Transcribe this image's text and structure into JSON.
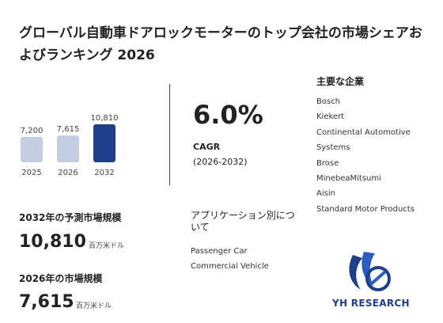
{
  "title": "グローバル自動車ドアロックモーターのトップ会社の市場シェアおよびランキング 2026",
  "chart_data": {
    "type": "bar",
    "categories": [
      "2025",
      "2026",
      "2032"
    ],
    "values": [
      7200,
      7615,
      10810
    ],
    "value_labels": [
      "7,200",
      "7,615",
      "10,810"
    ],
    "colors": [
      "#c3cee2",
      "#c3cee2",
      "#1f3f8a"
    ]
  },
  "cagr": {
    "value": "6.0%",
    "label": "CAGR",
    "range": "(2026-2032)"
  },
  "companies": {
    "title": "主要な企業",
    "items": [
      "Bosch",
      "Kiekert",
      "Continental Automotive Systems",
      "Brose",
      "MinebeaMitsumi",
      "Aisin",
      "Standard Motor Products"
    ]
  },
  "applications": {
    "title": "アプリケーション別について",
    "items": [
      "Passenger Car",
      "Commercial Vehicle"
    ]
  },
  "metrics": {
    "market_2032_label": "2032年の予測市場規模",
    "market_2032_value": "10,810",
    "market_2032_unit": "百万米ドル",
    "market_2026_label": "2026年の市場規模",
    "market_2026_value": "7,615",
    "market_2026_unit": "百万米ドル"
  },
  "logo": {
    "text": "YH RESEARCH",
    "icon": "yh-research-logo-icon",
    "brand_color": "#1f3f8a"
  }
}
